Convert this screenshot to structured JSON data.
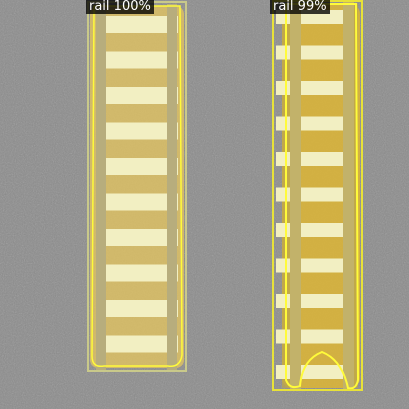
{
  "detections": [
    {
      "label": "rail",
      "score": "100%",
      "text": "rail 100%"
    },
    {
      "label": "rail",
      "score": "99%",
      "text": "rail 99%"
    }
  ],
  "colors": {
    "ground": "#8b8b8b",
    "tie_fill": "#d6b25a",
    "sleeper": "#f2efc2",
    "rail_steel": "#b3a877",
    "mask_outline": "#fffb3a",
    "box_left": "#c9c98a",
    "box_right": "#e8e238"
  }
}
